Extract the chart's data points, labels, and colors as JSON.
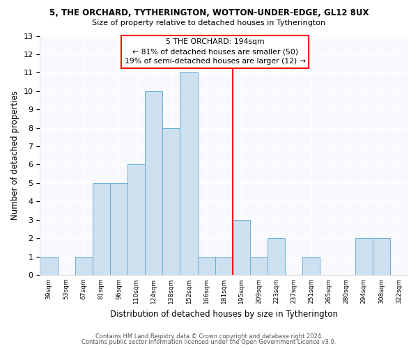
{
  "title": "5, THE ORCHARD, TYTHERINGTON, WOTTON-UNDER-EDGE, GL12 8UX",
  "subtitle": "Size of property relative to detached houses in Tytherington",
  "xlabel": "Distribution of detached houses by size in Tytherington",
  "ylabel": "Number of detached properties",
  "bins": [
    "39sqm",
    "53sqm",
    "67sqm",
    "81sqm",
    "96sqm",
    "110sqm",
    "124sqm",
    "138sqm",
    "152sqm",
    "166sqm",
    "181sqm",
    "195sqm",
    "209sqm",
    "223sqm",
    "237sqm",
    "251sqm",
    "265sqm",
    "280sqm",
    "294sqm",
    "308sqm",
    "322sqm"
  ],
  "counts": [
    1,
    0,
    1,
    5,
    5,
    6,
    10,
    8,
    11,
    1,
    1,
    3,
    1,
    2,
    0,
    1,
    0,
    0,
    2,
    2,
    0
  ],
  "bar_color": "#cce0f0",
  "bar_edge_color": "#6aaed6",
  "reference_line_index": 11,
  "reference_line_label": "5 THE ORCHARD: 194sqm",
  "annotation_line1": "← 81% of detached houses are smaller (50)",
  "annotation_line2": "19% of semi-detached houses are larger (12) →",
  "ylim": [
    0,
    13
  ],
  "yticks": [
    0,
    1,
    2,
    3,
    4,
    5,
    6,
    7,
    8,
    9,
    10,
    11,
    12,
    13
  ],
  "footer_line1": "Contains HM Land Registry data © Crown copyright and database right 2024.",
  "footer_line2": "Contains public sector information licensed under the Open Government Licence v3.0.",
  "background_color": "#ffffff",
  "plot_bg_color": "#f7f9fc"
}
